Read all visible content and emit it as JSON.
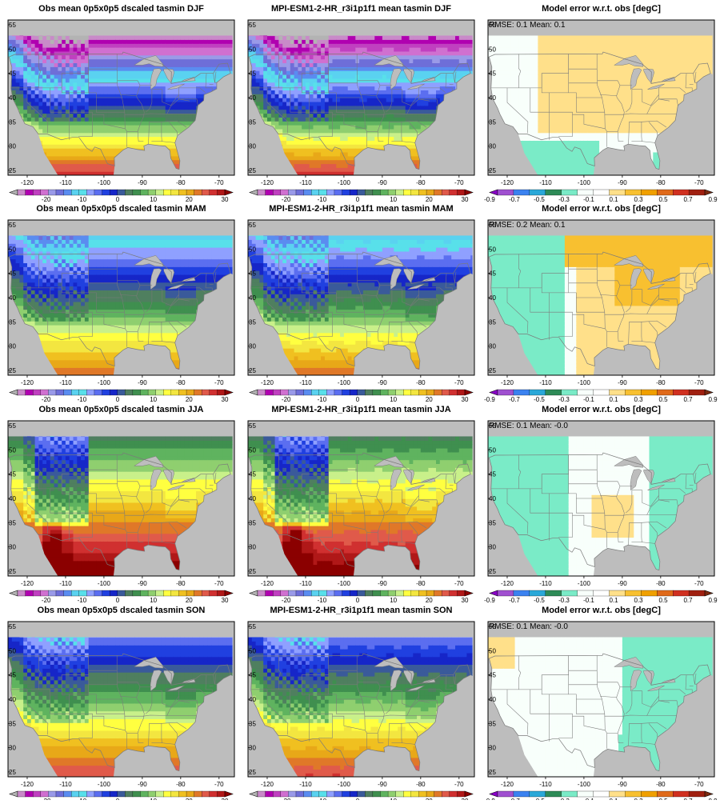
{
  "colors": {
    "ocean": "#bdbdbd",
    "border": "#7a7a7a",
    "frame": "#000000",
    "abs_scale": [
      "#b3b3b3",
      "#c98ac9",
      "#b000b0",
      "#c040c0",
      "#d070d0",
      "#9a9ae8",
      "#6e6ed8",
      "#5a8cf0",
      "#5ad2f0",
      "#58e0ea",
      "#8fa0ff",
      "#5b6ef0",
      "#2040e0",
      "#1626c8",
      "#3a5a9a",
      "#4f7f5f",
      "#3f8f4f",
      "#5fb35f",
      "#8fcf6f",
      "#c9f08a",
      "#ffff40",
      "#f3e640",
      "#f0c020",
      "#e8a818",
      "#e07828",
      "#e05a4a",
      "#d03030",
      "#b01818",
      "#8b0000"
    ],
    "err_scale": [
      "#8a00c8",
      "#a050d0",
      "#3b82f0",
      "#2aa8d8",
      "#2e8b57",
      "#7aebc7",
      "#f8fffb",
      "#ffffff",
      "#ffe08a",
      "#f8c030",
      "#f0a000",
      "#e06a1a",
      "#d03020",
      "#a02010",
      "#7a2a10"
    ]
  },
  "rows": [
    {
      "season": "DJF",
      "obs_title": "Obs mean 0p5x0p5 dscaled tasmin DJF",
      "model_title": "MPI-ESM1-2-HR_r3i1p1f1 mean tasmin DJF",
      "err_title": "Model error w.r.t. obs [degC]",
      "stats": "RMSE: 0.1   Mean: 0.1"
    },
    {
      "season": "MAM",
      "obs_title": "Obs mean 0p5x0p5 dscaled tasmin MAM",
      "model_title": "MPI-ESM1-2-HR_r3i1p1f1 mean tasmin MAM",
      "err_title": "Model error w.r.t. obs [degC]",
      "stats": "RMSE: 0.2   Mean: 0.1"
    },
    {
      "season": "JJA",
      "obs_title": "Obs mean 0p5x0p5 dscaled tasmin JJA",
      "model_title": "MPI-ESM1-2-HR_r3i1p1f1 mean tasmin JJA",
      "err_title": "Model error w.r.t. obs [degC]",
      "stats": "RMSE: 0.1   Mean: -0.0"
    },
    {
      "season": "SON",
      "obs_title": "Obs mean 0p5x0p5 dscaled tasmin SON",
      "model_title": "MPI-ESM1-2-HR_r3i1p1f1 mean tasmin SON",
      "err_title": "Model error w.r.t. obs [degC]",
      "stats": "RMSE: 0.1   Mean: -0.0"
    }
  ],
  "axes": {
    "lon_ticks": [
      "-120",
      "-110",
      "-100",
      "-90",
      "-80",
      "-70"
    ],
    "lon_values": [
      -120,
      -110,
      -100,
      -90,
      -80,
      -70
    ],
    "lat_ticks": [
      "25",
      "30",
      "35",
      "40",
      "45",
      "50",
      "55"
    ],
    "lat_values": [
      25,
      30,
      35,
      40,
      45,
      50,
      55
    ],
    "lon_range": [
      -125,
      -66
    ],
    "lat_range": [
      24,
      56
    ]
  },
  "abs_colorbar_labels": [
    "-20",
    "-10",
    "0",
    "10",
    "20",
    "30"
  ],
  "abs_colorbar_values": [
    -20,
    -10,
    0,
    10,
    20,
    30
  ],
  "abs_colorbar_range": [
    -28,
    30
  ],
  "err_colorbar_labels": [
    "-0.9",
    "-0.7",
    "-0.5",
    "-0.3",
    "-0.1",
    "0.1",
    "0.3",
    "0.5",
    "0.7",
    "0.9"
  ]
}
